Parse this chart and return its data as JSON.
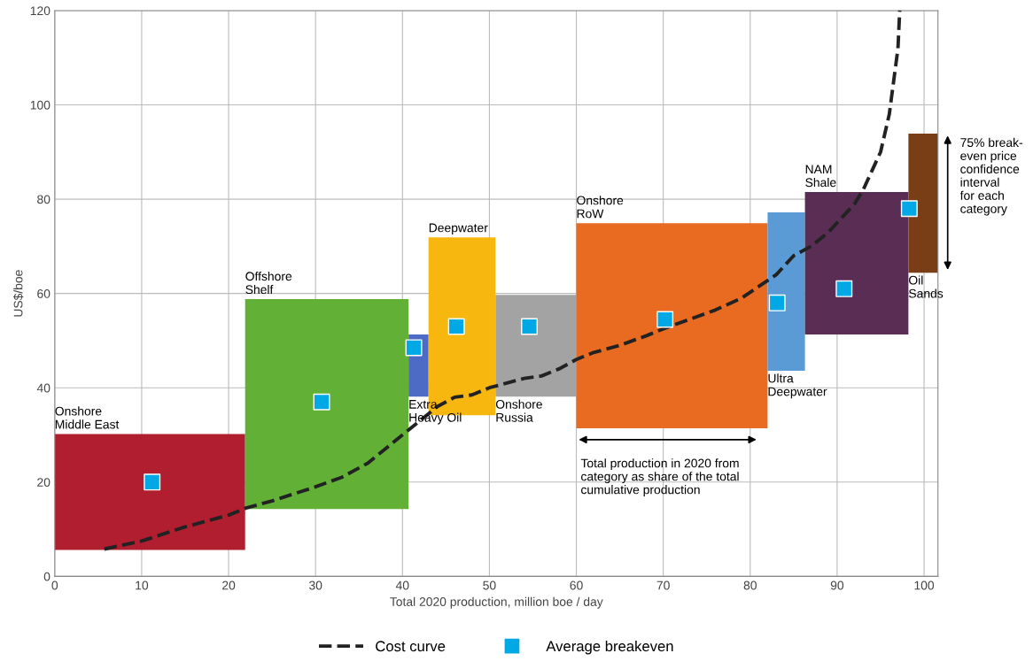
{
  "chart_data": {
    "type": "bar",
    "xlabel": "Total 2020 production, million boe / day",
    "ylabel": "US$/boe",
    "xlim": [
      0,
      101.6
    ],
    "ylim": [
      0,
      120
    ],
    "xticks": [
      0,
      10,
      20,
      30,
      40,
      50,
      60,
      70,
      80,
      90,
      100
    ],
    "yticks": [
      0,
      20,
      40,
      60,
      80,
      100,
      120
    ],
    "grid": true,
    "legend": "bottom",
    "series": [
      {
        "name": "Onshore\nMiddle East",
        "color": "#b01e2f",
        "x": [
          10.95
        ],
        "base": [
          5.6
        ],
        "values": [
          24.6
        ]
      },
      {
        "name": "Offshore\nShelf",
        "color": "#62b036",
        "x": [
          31.3
        ],
        "base": [
          14.3
        ],
        "values": [
          44.5
        ]
      },
      {
        "name": "Extra\nHeavy Oil",
        "color": "#4d6bc4",
        "x": [
          41.85
        ],
        "base": [
          38.1
        ],
        "values": [
          13.2
        ]
      },
      {
        "name": "Deepwater",
        "color": "#f7b70f",
        "x": [
          46.85
        ],
        "base": [
          34.2
        ],
        "values": [
          37.7
        ]
      },
      {
        "name": "Onshore\nRussia",
        "color": "#a3a3a3",
        "x": [
          55.35
        ],
        "base": [
          38.1
        ],
        "values": [
          21.6
        ]
      },
      {
        "name": "Onshore\nRoW",
        "color": "#e96b22",
        "x": [
          71
        ],
        "base": [
          31.4
        ],
        "values": [
          43.5
        ]
      },
      {
        "name": "Ultra\nDeepwater",
        "color": "#5b9bd5",
        "x": [
          84.15
        ],
        "base": [
          43.6
        ],
        "values": [
          33.6
        ]
      },
      {
        "name": "NAM\nShale",
        "color": "#5a2d55",
        "x": [
          92.25
        ],
        "base": [
          51.3
        ],
        "values": [
          30.2
        ]
      },
      {
        "name": "Oil\nSands",
        "color": "#7a3e17",
        "x": [
          99.9
        ],
        "base": [
          64.4
        ],
        "values": [
          29.5
        ]
      },
      {
        "name": "Cost curve",
        "type": "line",
        "line_style": "dashed",
        "marker": "none",
        "color": "#222222",
        "x": [
          5.7,
          10,
          15,
          20,
          22,
          25,
          30,
          33,
          36,
          38,
          40,
          42,
          44,
          46,
          48,
          50,
          52,
          54,
          56,
          58,
          60,
          62,
          65,
          68,
          70,
          73,
          76,
          79,
          81,
          83,
          85,
          87,
          89,
          91,
          92,
          93,
          94,
          95,
          96,
          96.5,
          97,
          97.2
        ],
        "values": [
          5.8,
          7.5,
          10.5,
          13,
          14.5,
          16,
          19,
          21,
          24,
          27,
          30,
          33,
          36,
          38,
          38.5,
          40,
          41,
          42,
          42.5,
          44,
          46,
          47.5,
          49,
          51,
          52.5,
          54.5,
          56.5,
          59,
          61.5,
          64,
          68,
          70,
          73,
          77,
          79,
          82,
          86,
          90,
          98,
          105,
          112,
          120
        ]
      },
      {
        "name": "Average breakeven",
        "type": "scatter",
        "marker": "square",
        "color": "#00a9e6",
        "x": [
          11.2,
          30.7,
          41.3,
          46.2,
          54.6,
          70.2,
          83.1,
          90.8,
          98.3
        ],
        "values": [
          20,
          37,
          48.5,
          53,
          53,
          54.5,
          58,
          61,
          78
        ]
      }
    ],
    "annotations": [
      "Total production in 2020 from\ncategory as share of the total\ncumulative production",
      "75% break-\neven price\nconfidence\ninterval\nfor each\ncategory"
    ]
  }
}
